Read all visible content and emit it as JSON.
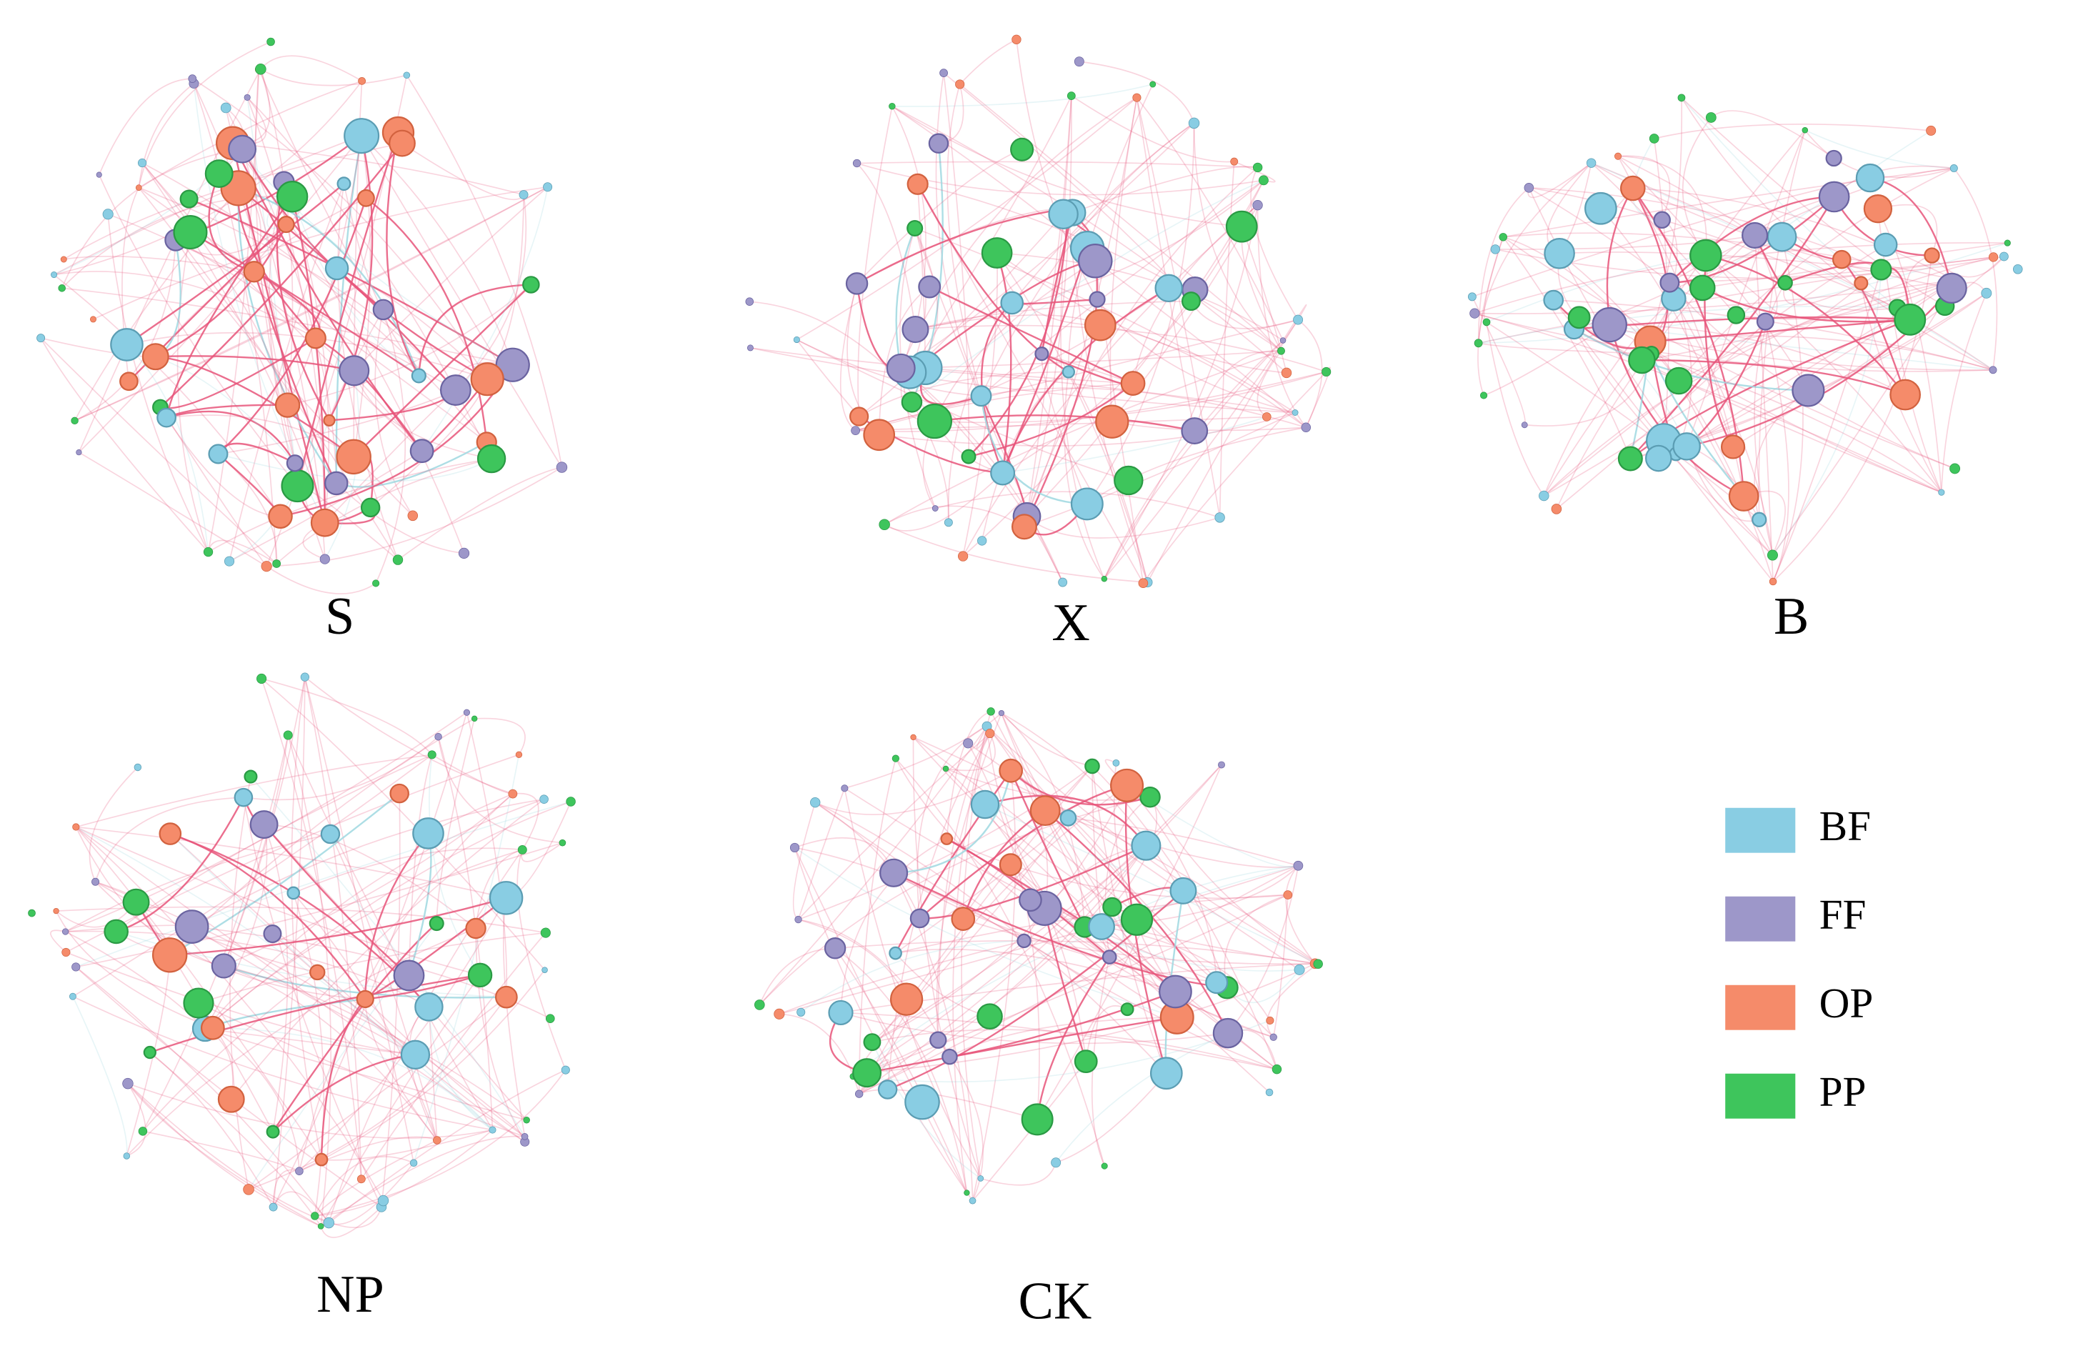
{
  "panels": [
    {
      "label": "S"
    },
    {
      "label": "X"
    },
    {
      "label": "B"
    },
    {
      "label": "NP"
    },
    {
      "label": "CK"
    }
  ],
  "legend": [
    {
      "label": "BF",
      "color": "#89cde3"
    },
    {
      "label": "FF",
      "color": "#9d97c9"
    },
    {
      "label": "OP",
      "color": "#f58b6a"
    },
    {
      "label": "PP",
      "color": "#3ec55c"
    }
  ]
}
